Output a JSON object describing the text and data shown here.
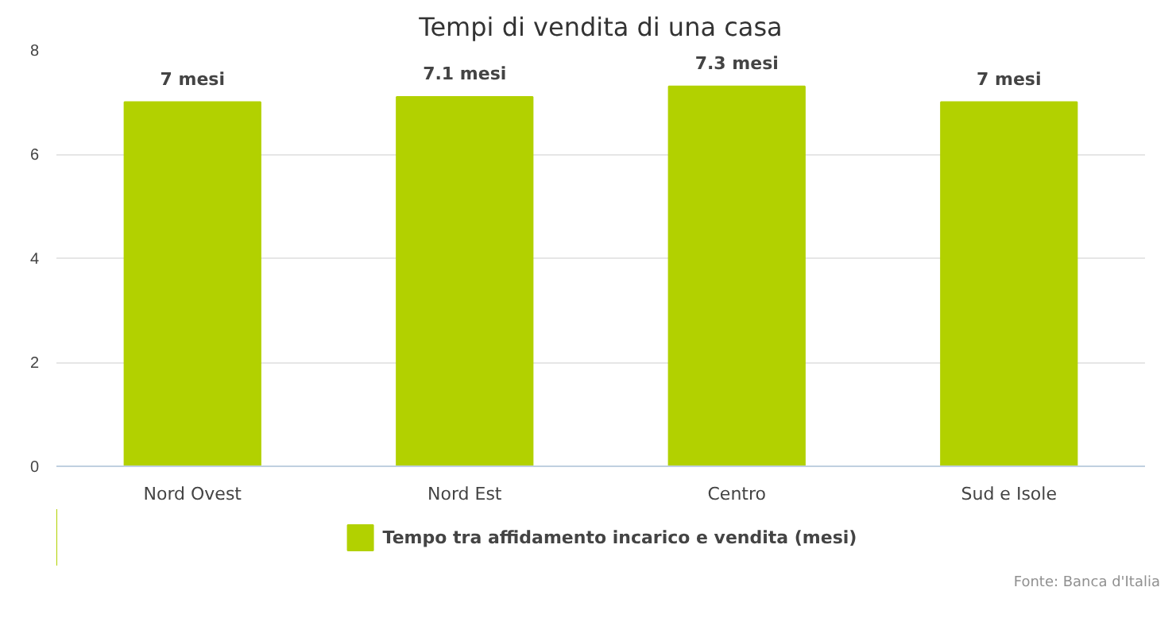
{
  "chart_data": {
    "type": "bar",
    "title": "Tempi di vendita di una casa",
    "categories": [
      "Nord Ovest",
      "Nord Est",
      "Centro",
      "Sud e Isole"
    ],
    "series": [
      {
        "name": "Tempo tra affidamento incarico e vendita (mesi)",
        "color": "#b2d100",
        "values": [
          7,
          7.1,
          7.3,
          7
        ],
        "value_labels": [
          "7 mesi",
          "7.1 mesi",
          "7.3 mesi",
          "7 mesi"
        ]
      }
    ],
    "ylim": [
      0,
      8
    ],
    "yticks": [
      0,
      2,
      4,
      6,
      8
    ],
    "grid": "y",
    "legend": "bottom",
    "annotations": [
      "Fonte: Banca d'Italia"
    ]
  }
}
